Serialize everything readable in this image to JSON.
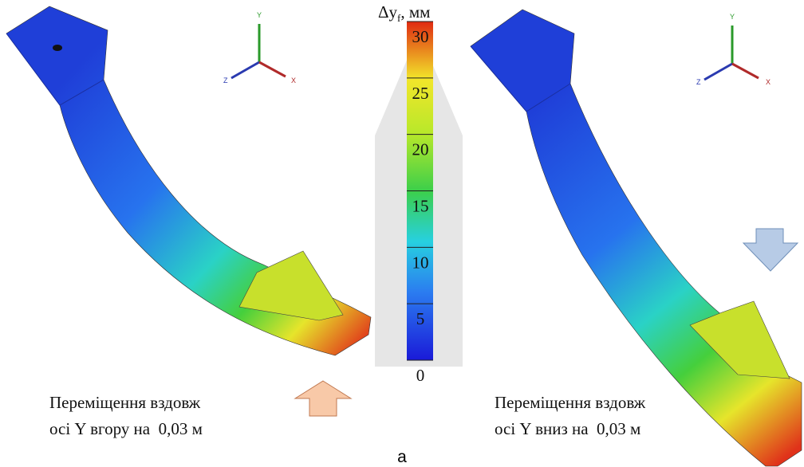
{
  "colorbar": {
    "title": "Δy",
    "title_subscript": "f",
    "title_unit": ", мм",
    "ticks": [
      0,
      5,
      10,
      15,
      20,
      25,
      30
    ]
  },
  "left_panel": {
    "axes": {
      "y": "Y",
      "z": "Z",
      "x": "X"
    },
    "caption": [
      "Переміщення вздовж",
      "осі Y вгору на  0,03 м"
    ]
  },
  "right_panel": {
    "axes": {
      "y": "Y",
      "z": "Z",
      "x": "X"
    },
    "caption": [
      "Переміщення вздовж",
      "осі Y вниз на  0,03 м"
    ]
  },
  "figure_label": "а"
}
